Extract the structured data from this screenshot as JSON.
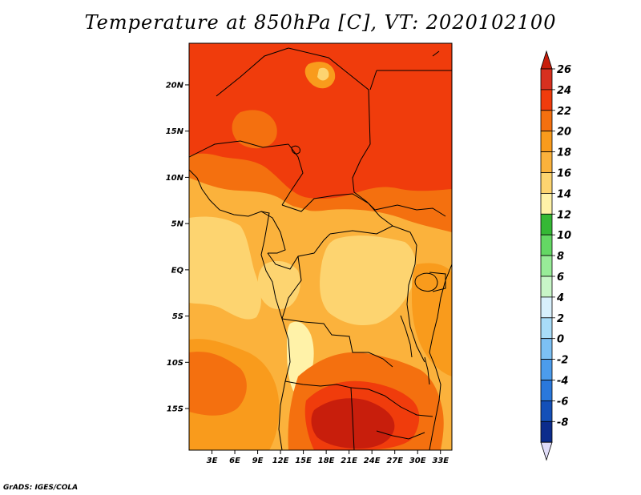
{
  "title": "Temperature at 850hPa [C], VT: 2020102100",
  "credit": "GrADS: IGES/COLA",
  "map": {
    "lon_range": [
      0,
      34.5
    ],
    "lat_range": [
      -19.5,
      24.5
    ],
    "lat_ticks": [
      {
        "value": 20,
        "label": "20N"
      },
      {
        "value": 15,
        "label": "15N"
      },
      {
        "value": 10,
        "label": "10N"
      },
      {
        "value": 5,
        "label": "5N"
      },
      {
        "value": 0,
        "label": "EQ"
      },
      {
        "value": -5,
        "label": "5S"
      },
      {
        "value": -10,
        "label": "10S"
      },
      {
        "value": -15,
        "label": "15S"
      }
    ],
    "lon_ticks": [
      {
        "value": 3,
        "label": "3E"
      },
      {
        "value": 6,
        "label": "6E"
      },
      {
        "value": 9,
        "label": "9E"
      },
      {
        "value": 12,
        "label": "12E"
      },
      {
        "value": 15,
        "label": "15E"
      },
      {
        "value": 18,
        "label": "18E"
      },
      {
        "value": 21,
        "label": "21E"
      },
      {
        "value": 24,
        "label": "24E"
      },
      {
        "value": 27,
        "label": "27E"
      },
      {
        "value": 30,
        "label": "30E"
      },
      {
        "value": 33,
        "label": "33E"
      }
    ]
  },
  "colorbar": {
    "levels": [
      {
        "label": "26",
        "color": "#d7301f"
      },
      {
        "label": "24",
        "color": "#f03c0c"
      },
      {
        "label": "22",
        "color": "#f4700f"
      },
      {
        "label": "20",
        "color": "#f99b1c"
      },
      {
        "label": "18",
        "color": "#fbb23c"
      },
      {
        "label": "16",
        "color": "#fdd470"
      },
      {
        "label": "14",
        "color": "#fff2a8"
      },
      {
        "label": "12",
        "color": "#35b835"
      },
      {
        "label": "10",
        "color": "#64d864"
      },
      {
        "label": "8",
        "color": "#98ec98"
      },
      {
        "label": "6",
        "color": "#c8f6c8"
      },
      {
        "label": "4",
        "color": "#d8f0fc"
      },
      {
        "label": "2",
        "color": "#a8dcf8"
      },
      {
        "label": "0",
        "color": "#7cc0f4"
      },
      {
        "label": "-2",
        "color": "#4c9cec"
      },
      {
        "label": "-4",
        "color": "#2a78dc"
      },
      {
        "label": "-6",
        "color": "#1450b8"
      },
      {
        "label": "-8",
        "color": "#0c2c8c"
      }
    ],
    "top_cap_color": "#c81e0c",
    "bottom_cap_color": "#e0dcf8",
    "bottom_below_color": "#080a60"
  }
}
